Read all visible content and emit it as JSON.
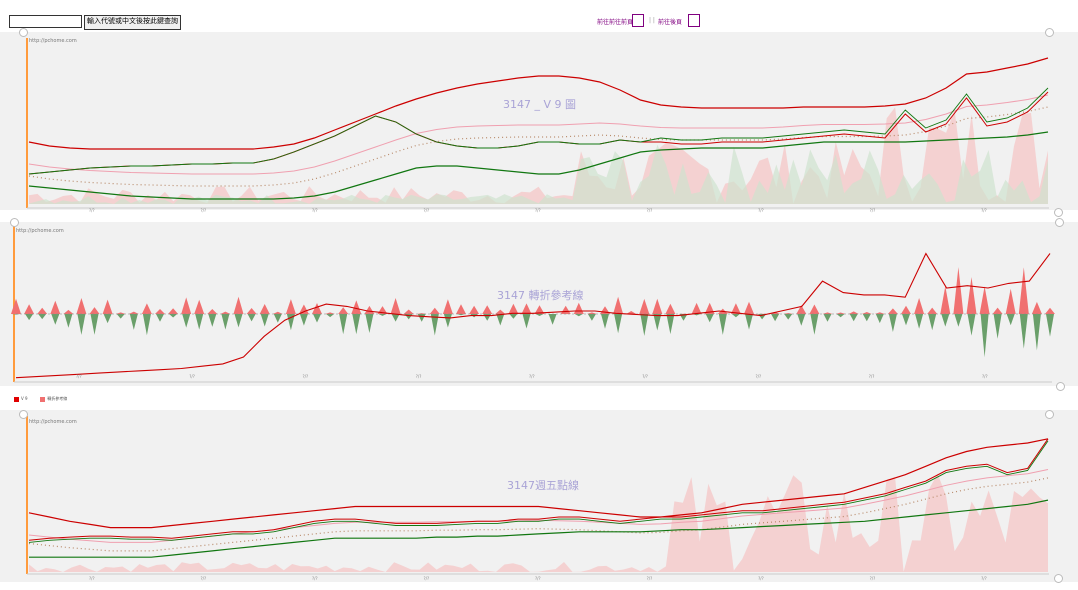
{
  "toolbar": {
    "input_value": "",
    "query_label": "輸入代號或中文後按此鍵查詢"
  },
  "nav": {
    "link1": "前往前往前頁",
    "link2": "前往後頁"
  },
  "charts": {
    "source": "http://pchome.com",
    "panel1_title": "3147 _ V 9 圖",
    "panel2_title": "3147 轉折參考線",
    "panel3_title": "3147週五點線"
  },
  "legend": {
    "item1": "V 9",
    "item2": "轉折參考線"
  },
  "colors": {
    "red": "#cc0000",
    "green": "#117711",
    "pink": "#f0a0b0",
    "fill_red": "#f5c9c9",
    "fill_green": "#cfe3cf",
    "axis": "#ff9b3d"
  },
  "chart_data": [
    {
      "type": "line",
      "title": "3147 _ V 9 圖",
      "x": [
        0,
        1,
        2,
        3,
        4,
        5,
        6,
        7,
        8,
        9,
        10,
        11,
        12,
        13,
        14,
        15,
        16,
        17,
        18,
        19,
        20,
        21,
        22,
        23,
        24,
        25,
        26,
        27,
        28,
        29,
        30,
        31,
        32,
        33,
        34,
        35,
        36,
        37,
        38,
        39,
        40,
        41,
        42,
        43,
        44,
        45,
        46,
        47,
        48,
        49,
        50
      ],
      "series": [
        {
          "name": "upper",
          "values": [
            62,
            58,
            56,
            55,
            55,
            55,
            55,
            55,
            55,
            55,
            55,
            55,
            57,
            60,
            66,
            74,
            82,
            90,
            98,
            105,
            111,
            116,
            120,
            123,
            126,
            128,
            128,
            126,
            122,
            114,
            104,
            99,
            97,
            96,
            96,
            96,
            96,
            96,
            97,
            97,
            97,
            97,
            98,
            100,
            106,
            116,
            130,
            132,
            136,
            140,
            146
          ]
        },
        {
          "name": "price",
          "values": [
            30,
            32,
            34,
            36,
            37,
            38,
            38,
            39,
            40,
            40,
            41,
            41,
            45,
            52,
            60,
            68,
            78,
            88,
            82,
            70,
            62,
            58,
            56,
            56,
            58,
            62,
            62,
            60,
            60,
            64,
            62,
            62,
            60,
            60,
            62,
            62,
            62,
            64,
            66,
            68,
            70,
            68,
            66,
            90,
            72,
            80,
            106,
            78,
            82,
            92,
            112
          ]
        },
        {
          "name": "lower",
          "values": [
            18,
            16,
            14,
            12,
            10,
            8,
            7,
            6,
            5,
            5,
            5,
            5,
            5,
            6,
            8,
            12,
            18,
            24,
            30,
            36,
            38,
            38,
            36,
            34,
            32,
            30,
            30,
            34,
            40,
            46,
            52,
            54,
            55,
            56,
            56,
            56,
            56,
            58,
            60,
            62,
            62,
            62,
            62,
            62,
            63,
            64,
            65,
            66,
            67,
            69,
            72
          ]
        }
      ],
      "ylim": [
        0,
        160
      ]
    },
    {
      "type": "line",
      "title": "3147 轉折參考線",
      "series": [
        {
          "name": "V 9",
          "values": [
            2,
            3,
            4,
            5,
            6,
            7,
            8,
            9,
            10,
            12,
            14,
            20,
            38,
            52,
            60,
            66,
            64,
            60,
            58,
            56,
            55,
            54,
            56,
            56,
            58,
            58,
            59,
            60,
            60,
            58,
            57,
            56,
            56,
            58,
            60,
            58,
            56,
            60,
            64,
            86,
            76,
            74,
            74,
            72,
            110,
            80,
            82,
            80,
            84,
            86,
            110
          ]
        }
      ]
    },
    {
      "type": "line",
      "title": "3147週五點線",
      "series": [
        {
          "name": "upper",
          "values": [
            56,
            52,
            48,
            45,
            42,
            42,
            42,
            44,
            46,
            48,
            50,
            52,
            54,
            56,
            58,
            60,
            62,
            62,
            62,
            62,
            62,
            62,
            62,
            62,
            62,
            62,
            60,
            58,
            56,
            54,
            52,
            52,
            54,
            56,
            60,
            64,
            66,
            68,
            70,
            72,
            74,
            80,
            86,
            92,
            100,
            108,
            114,
            118,
            120,
            122,
            126
          ]
        },
        {
          "name": "price",
          "values": [
            30,
            32,
            33,
            34,
            34,
            33,
            33,
            32,
            34,
            36,
            38,
            38,
            40,
            44,
            48,
            50,
            50,
            48,
            46,
            46,
            46,
            47,
            48,
            48,
            50,
            50,
            52,
            52,
            50,
            48,
            50,
            52,
            52,
            54,
            56,
            58,
            58,
            60,
            62,
            64,
            66,
            70,
            74,
            80,
            86,
            96,
            100,
            102,
            94,
            98,
            126
          ]
        },
        {
          "name": "lower",
          "values": [
            14,
            14,
            14,
            14,
            14,
            14,
            14,
            16,
            18,
            20,
            22,
            24,
            26,
            28,
            30,
            32,
            32,
            32,
            32,
            32,
            33,
            33,
            34,
            34,
            35,
            36,
            37,
            38,
            38,
            38,
            38,
            39,
            40,
            40,
            41,
            42,
            43,
            44,
            45,
            46,
            47,
            48,
            50,
            52,
            54,
            56,
            58,
            60,
            62,
            64,
            68
          ]
        }
      ]
    }
  ]
}
